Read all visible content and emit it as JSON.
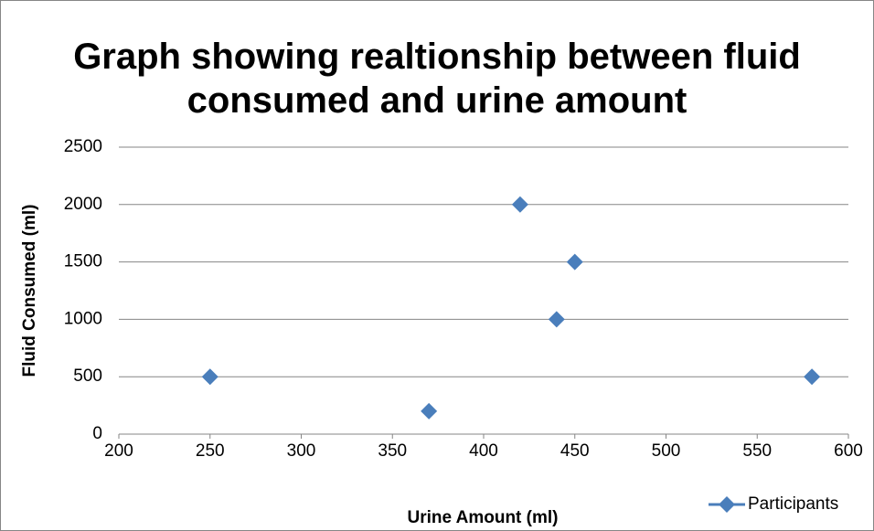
{
  "chart_data": {
    "type": "scatter",
    "title": "Graph showing realtionship between fluid consumed and urine amount",
    "x_label": "Urine Amount (ml)",
    "y_label": "Fluid Consumed (ml)",
    "series": [
      {
        "name": "Participants",
        "color": "#4a7ebb",
        "x": [
          250,
          370,
          420,
          440,
          450,
          580
        ],
        "values": [
          500,
          200,
          2000,
          1000,
          1500,
          500
        ]
      }
    ],
    "xlim": [
      200,
      600
    ],
    "xticks": [
      200,
      250,
      300,
      350,
      400,
      450,
      500,
      550,
      600
    ],
    "ylim": [
      0,
      2500
    ],
    "yticks": [
      0,
      500,
      1000,
      1500,
      2000,
      2500
    ],
    "grid": true,
    "legend": "bottom-right"
  }
}
